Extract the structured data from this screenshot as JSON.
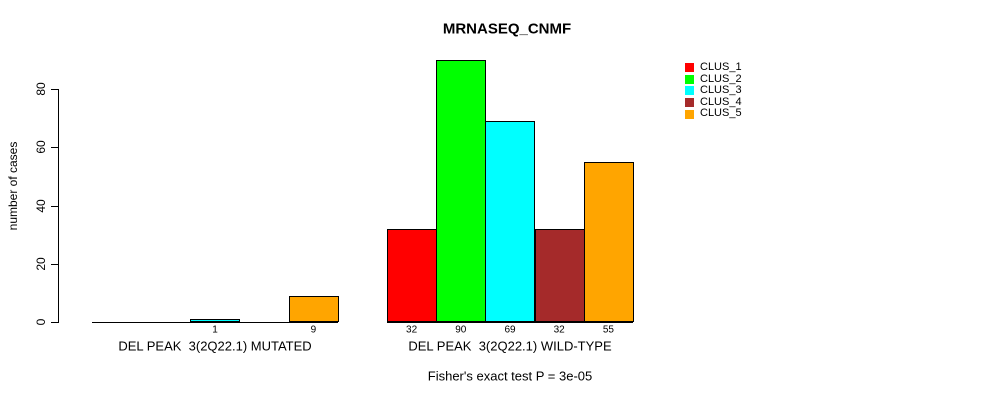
{
  "chart_data": {
    "type": "bar",
    "title": "MRNASEQ_CNMF",
    "ylabel": "number of cases",
    "ylim": [
      0,
      90
    ],
    "yticks": [
      0,
      20,
      40,
      60,
      80
    ],
    "grid": false,
    "legend_position": "top-right",
    "series": [
      {
        "name": "CLUS_1",
        "color": "#ff0000"
      },
      {
        "name": "CLUS_2",
        "color": "#00ff00"
      },
      {
        "name": "CLUS_3",
        "color": "#00ffff"
      },
      {
        "name": "CLUS_4",
        "color": "#a52a2a"
      },
      {
        "name": "CLUS_5",
        "color": "#ffa500"
      }
    ],
    "groups": [
      {
        "label": "DEL PEAK  3(2Q22.1) MUTATED",
        "values": [
          0,
          0,
          1,
          0,
          9
        ],
        "bar_labels": [
          "",
          "",
          "1",
          "",
          "9"
        ]
      },
      {
        "label": "DEL PEAK  3(2Q22.1) WILD-TYPE",
        "values": [
          32,
          90,
          69,
          32,
          55
        ],
        "bar_labels": [
          "32",
          "90",
          "69",
          "32",
          "55"
        ]
      }
    ],
    "footnote": "Fisher's exact test P = 3e-05"
  }
}
